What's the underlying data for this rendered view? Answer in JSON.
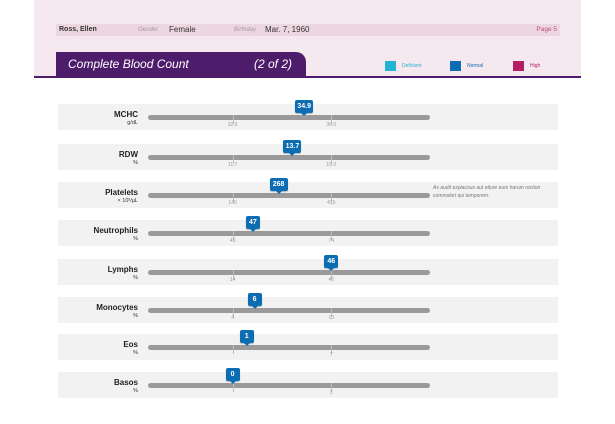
{
  "header": {
    "patient_name": "Ross, Ellen",
    "gender_label": "Gender",
    "gender_value": "Female",
    "birthday_label": "Birthday",
    "birthday_value": "Mar. 7, 1960",
    "page_label": "Page 5"
  },
  "title": {
    "main": "Complete Blood Count",
    "part": "(2 of 2)"
  },
  "legend": [
    {
      "label": "Deficient",
      "color": "#24b3d1"
    },
    {
      "label": "Normal",
      "color": "#0c6db3"
    },
    {
      "label": "High",
      "color": "#b21d64"
    }
  ],
  "note": "As audit explacous aut etiure eum harum rection commolori qui temporem.",
  "tests": [
    {
      "name": "MCHC",
      "unit": "g/dL",
      "value": "34.9",
      "value_num": 34.9,
      "low": 32.0,
      "high": 36.0,
      "low_label": "32.0",
      "high_label": "36.0"
    },
    {
      "name": "RDW",
      "unit": "%",
      "value": "13.7",
      "value_num": 13.7,
      "low": 11.7,
      "high": 15.0,
      "low_label": "11.7",
      "high_label": "15.0"
    },
    {
      "name": "Platelets",
      "unit": "× 10³/µL",
      "value": "268",
      "value_num": 268,
      "low": 140,
      "high": 415,
      "low_label": "140",
      "high_label": "415"
    },
    {
      "name": "Neutrophils",
      "unit": "%",
      "value": "47",
      "value_num": 47,
      "low": 40,
      "high": 74,
      "low_label": "40",
      "high_label": "74"
    },
    {
      "name": "Lymphs",
      "unit": "%",
      "value": "46",
      "value_num": 46,
      "low": 14,
      "high": 46,
      "low_label": "14",
      "high_label": "46"
    },
    {
      "name": "Monocytes",
      "unit": "%",
      "value": "6",
      "value_num": 6,
      "low": 4,
      "high": 13,
      "low_label": "4",
      "high_label": "13"
    },
    {
      "name": "Eos",
      "unit": "%",
      "value": "1",
      "value_num": 1,
      "low": 0,
      "high": 7,
      "low_label": "",
      "high_label": "7"
    },
    {
      "name": "Basos",
      "unit": "%",
      "value": "0",
      "value_num": 0,
      "low": 0,
      "high": 3,
      "low_label": "",
      "high_label": "3"
    }
  ]
}
